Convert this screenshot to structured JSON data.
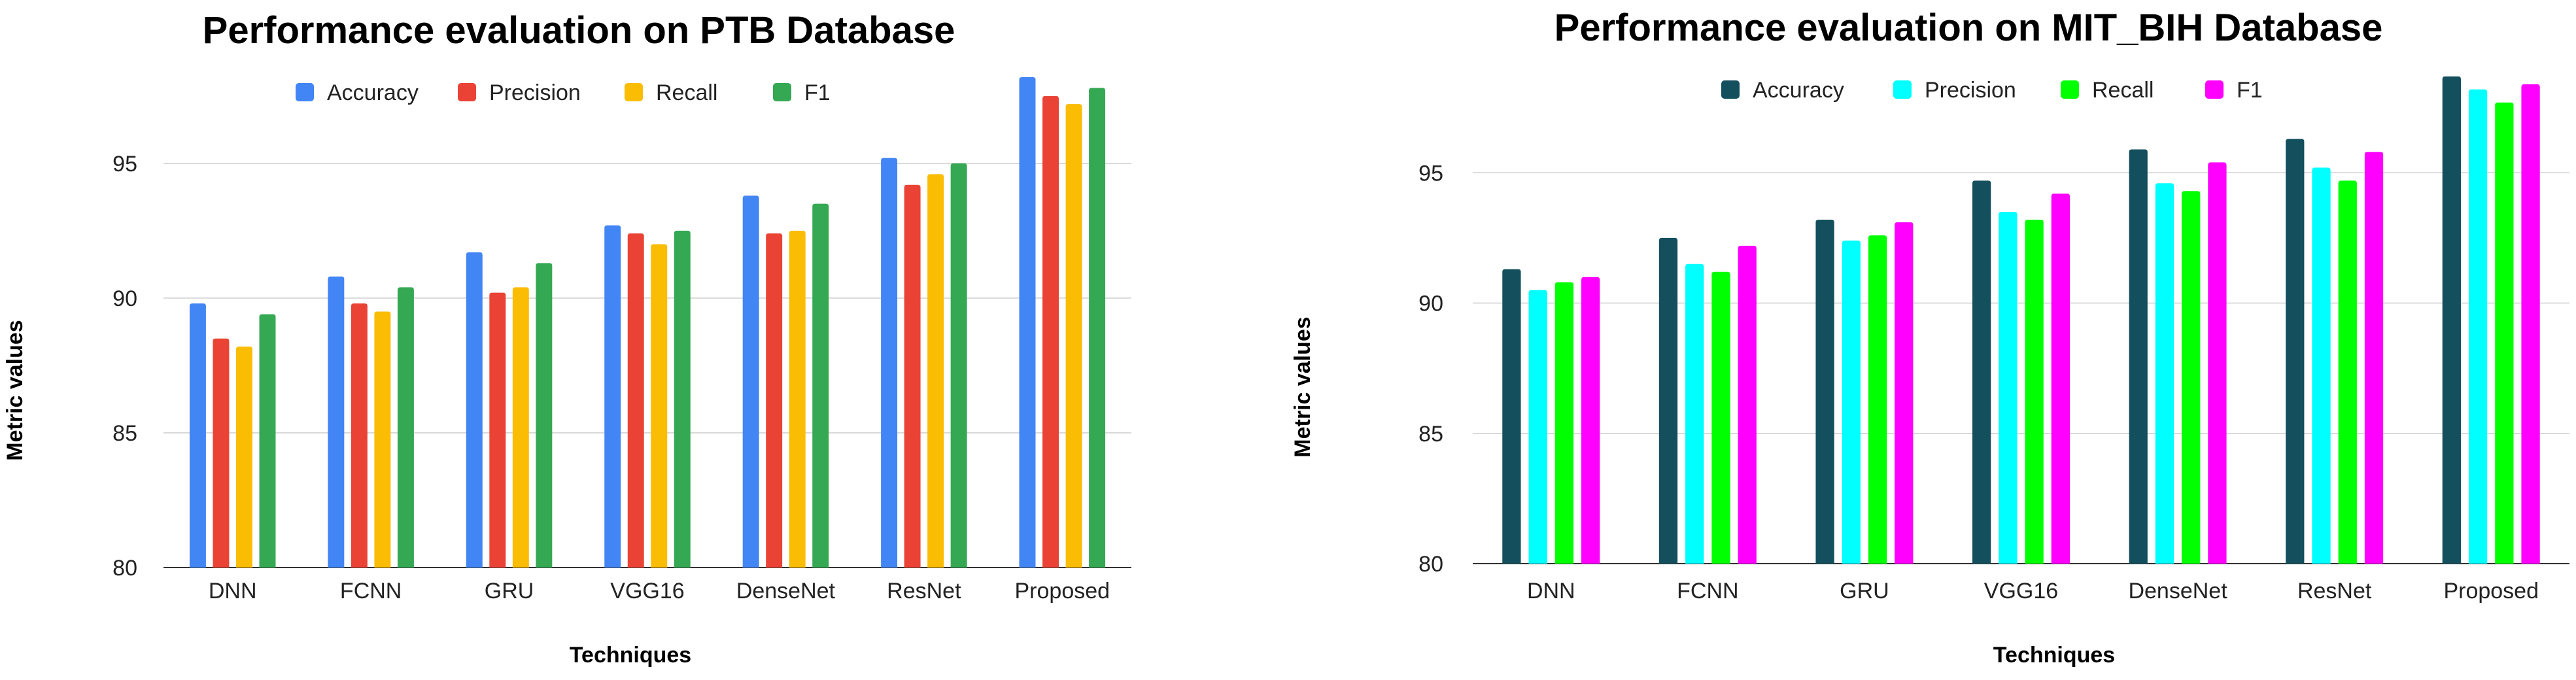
{
  "chart_data": [
    {
      "type": "bar",
      "title": "Performance evaluation on PTB Database",
      "xlabel": "Techniques",
      "ylabel": "Metric values",
      "ylim": [
        80,
        99
      ],
      "yticks": [
        80,
        85,
        90,
        95
      ],
      "grid": true,
      "legend_position": "top",
      "categories": [
        "DNN",
        "FCNN",
        "GRU",
        "VGG16",
        "DenseNet",
        "ResNet",
        "Proposed"
      ],
      "series": [
        {
          "name": "Accuracy",
          "color": "#4285F4",
          "values": [
            89.8,
            90.8,
            91.7,
            92.7,
            93.8,
            95.2,
            98.2
          ]
        },
        {
          "name": "Precision",
          "color": "#EA4335",
          "values": [
            88.5,
            89.8,
            90.2,
            92.4,
            92.4,
            94.2,
            97.5
          ]
        },
        {
          "name": "Recall",
          "color": "#FBBC04",
          "values": [
            88.2,
            89.5,
            90.4,
            92.0,
            92.5,
            94.6,
            97.2
          ]
        },
        {
          "name": "F1",
          "color": "#34A853",
          "values": [
            89.4,
            90.4,
            91.3,
            92.5,
            93.5,
            95.0,
            97.8
          ]
        }
      ]
    },
    {
      "type": "bar",
      "title": "Performance evaluation on MIT_BIH Database",
      "xlabel": "Techniques",
      "ylabel": "Metric values",
      "ylim": [
        80,
        99.5
      ],
      "yticks": [
        80,
        85,
        90,
        95
      ],
      "grid": true,
      "legend_position": "top",
      "categories": [
        "DNN",
        "FCNN",
        "GRU",
        "VGG16",
        "DenseNet",
        "ResNet",
        "Proposed"
      ],
      "series": [
        {
          "name": "Accuracy",
          "color": "#134F5C",
          "values": [
            91.3,
            92.5,
            93.2,
            94.7,
            95.9,
            96.3,
            98.7
          ]
        },
        {
          "name": "Precision",
          "color": "#00FFFF",
          "values": [
            90.5,
            91.5,
            92.4,
            93.5,
            94.6,
            95.2,
            98.2
          ]
        },
        {
          "name": "Recall",
          "color": "#00FF00",
          "values": [
            90.8,
            91.2,
            92.6,
            93.2,
            94.3,
            94.7,
            97.7
          ]
        },
        {
          "name": "F1",
          "color": "#FF00FF",
          "values": [
            91.0,
            92.2,
            93.1,
            94.2,
            95.4,
            95.8,
            98.4
          ]
        }
      ]
    }
  ]
}
